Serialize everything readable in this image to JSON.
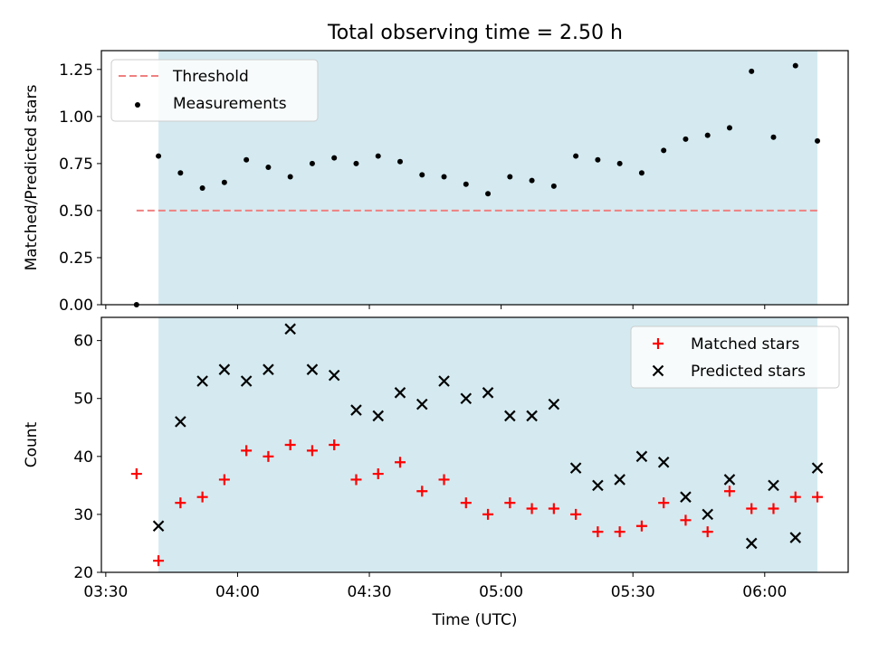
{
  "title": "Total observing time = 2.50 h",
  "chart_data": [
    {
      "type": "scatter",
      "panel": "top",
      "title": "Total observing time = 2.50 h",
      "xlabel": "",
      "ylabel": "Matched/Predicted stars",
      "ylim": [
        0,
        1.35
      ],
      "xlim": [
        "03:29",
        "06:19"
      ],
      "yticks": [
        "0.00",
        "0.25",
        "0.50",
        "0.75",
        "1.00",
        "1.25"
      ],
      "shaded_region": [
        "03:42",
        "06:12"
      ],
      "shade_color": "#d4eaf0",
      "legend_position": "upper left",
      "legend": [
        "Threshold",
        "Measurements"
      ],
      "threshold": {
        "name": "Threshold",
        "value": 0.5,
        "x_range": [
          "03:37",
          "06:12"
        ],
        "color": "#f08080",
        "style": "dashed"
      },
      "series": [
        {
          "name": "Measurements",
          "color": "#000000",
          "marker": "dot",
          "x": [
            "03:37",
            "03:42",
            "03:47",
            "03:52",
            "03:57",
            "04:02",
            "04:07",
            "04:12",
            "04:17",
            "04:22",
            "04:27",
            "04:32",
            "04:37",
            "04:42",
            "04:47",
            "04:52",
            "04:57",
            "05:02",
            "05:07",
            "05:12",
            "05:17",
            "05:22",
            "05:27",
            "05:32",
            "05:37",
            "05:42",
            "05:47",
            "05:52",
            "05:57",
            "06:02",
            "06:07",
            "06:12"
          ],
          "y": [
            0.0,
            0.79,
            0.7,
            0.62,
            0.65,
            0.77,
            0.73,
            0.68,
            0.75,
            0.78,
            0.75,
            0.79,
            0.76,
            0.69,
            0.68,
            0.64,
            0.59,
            0.68,
            0.66,
            0.63,
            0.79,
            0.77,
            0.75,
            0.7,
            0.82,
            0.88,
            0.9,
            0.94,
            1.24,
            0.89,
            1.27,
            0.87
          ]
        }
      ]
    },
    {
      "type": "scatter",
      "panel": "bottom",
      "xlabel": "Time (UTC)",
      "ylabel": "Count",
      "ylim": [
        20,
        64
      ],
      "xlim": [
        "03:29",
        "06:19"
      ],
      "xticks": [
        "03:30",
        "04:00",
        "04:30",
        "05:00",
        "05:30",
        "06:00"
      ],
      "yticks": [
        "20",
        "30",
        "40",
        "50",
        "60"
      ],
      "shaded_region": [
        "03:42",
        "06:12"
      ],
      "legend_position": "upper right",
      "legend": [
        "Matched stars",
        "Predicted stars"
      ],
      "series": [
        {
          "name": "Matched stars",
          "color": "#ff0000",
          "marker": "plus",
          "x": [
            "03:37",
            "03:42",
            "03:47",
            "03:52",
            "03:57",
            "04:02",
            "04:07",
            "04:12",
            "04:17",
            "04:22",
            "04:27",
            "04:32",
            "04:37",
            "04:42",
            "04:47",
            "04:52",
            "04:57",
            "05:02",
            "05:07",
            "05:12",
            "05:17",
            "05:22",
            "05:27",
            "05:32",
            "05:37",
            "05:42",
            "05:47",
            "05:52",
            "05:57",
            "06:02",
            "06:07",
            "06:12"
          ],
          "y": [
            37,
            22,
            32,
            33,
            36,
            41,
            40,
            42,
            41,
            42,
            36,
            37,
            39,
            34,
            36,
            32,
            30,
            32,
            31,
            31,
            30,
            27,
            27,
            28,
            32,
            29,
            27,
            34,
            31,
            31,
            33,
            33
          ]
        },
        {
          "name": "Predicted stars",
          "color": "#000000",
          "marker": "x",
          "x": [
            "03:42",
            "03:47",
            "03:52",
            "03:57",
            "04:02",
            "04:07",
            "04:12",
            "04:17",
            "04:22",
            "04:27",
            "04:32",
            "04:37",
            "04:42",
            "04:47",
            "04:52",
            "04:57",
            "05:02",
            "05:07",
            "05:12",
            "05:17",
            "05:22",
            "05:27",
            "05:32",
            "05:37",
            "05:42",
            "05:47",
            "05:52",
            "05:57",
            "06:02",
            "06:07",
            "06:12"
          ],
          "y": [
            28,
            46,
            53,
            55,
            53,
            55,
            62,
            55,
            54,
            48,
            47,
            51,
            49,
            53,
            50,
            51,
            47,
            47,
            49,
            38,
            35,
            36,
            40,
            39,
            33,
            30,
            36,
            25,
            35,
            26,
            38
          ]
        }
      ]
    }
  ]
}
